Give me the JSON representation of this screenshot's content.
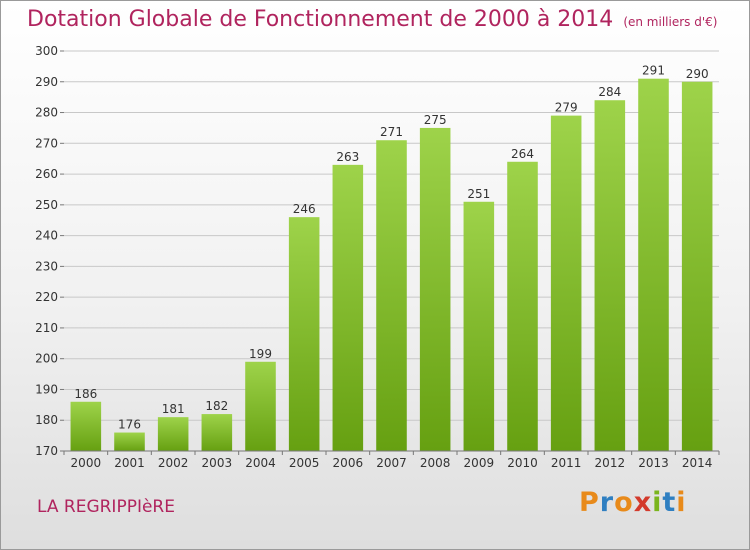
{
  "chart_title": "Dotation Globale de Fonctionnement de 2000 à 2014",
  "chart_subtitle": "(en milliers d'€)",
  "commune_name": "LA REGRIPPIèRE",
  "logo": {
    "letters": [
      "P",
      "r",
      "o",
      "x",
      "i",
      "t",
      "i"
    ],
    "colors": [
      "#e88a1a",
      "#2f7fc1",
      "#e88a1a",
      "#d33a2c",
      "#7ab51d",
      "#2f7fc1",
      "#e88a1a"
    ]
  },
  "chart_data": {
    "type": "bar",
    "categories": [
      "2000",
      "2001",
      "2002",
      "2003",
      "2004",
      "2005",
      "2006",
      "2007",
      "2008",
      "2009",
      "2010",
      "2011",
      "2012",
      "2013",
      "2014"
    ],
    "values": [
      186,
      176,
      181,
      182,
      199,
      246,
      263,
      271,
      275,
      251,
      264,
      279,
      284,
      291,
      290
    ],
    "ylim": [
      170,
      300
    ],
    "yticks": [
      170,
      180,
      190,
      200,
      210,
      220,
      230,
      240,
      250,
      260,
      270,
      280,
      290,
      300
    ],
    "grid": true,
    "bar_color": "#8cc63f"
  }
}
